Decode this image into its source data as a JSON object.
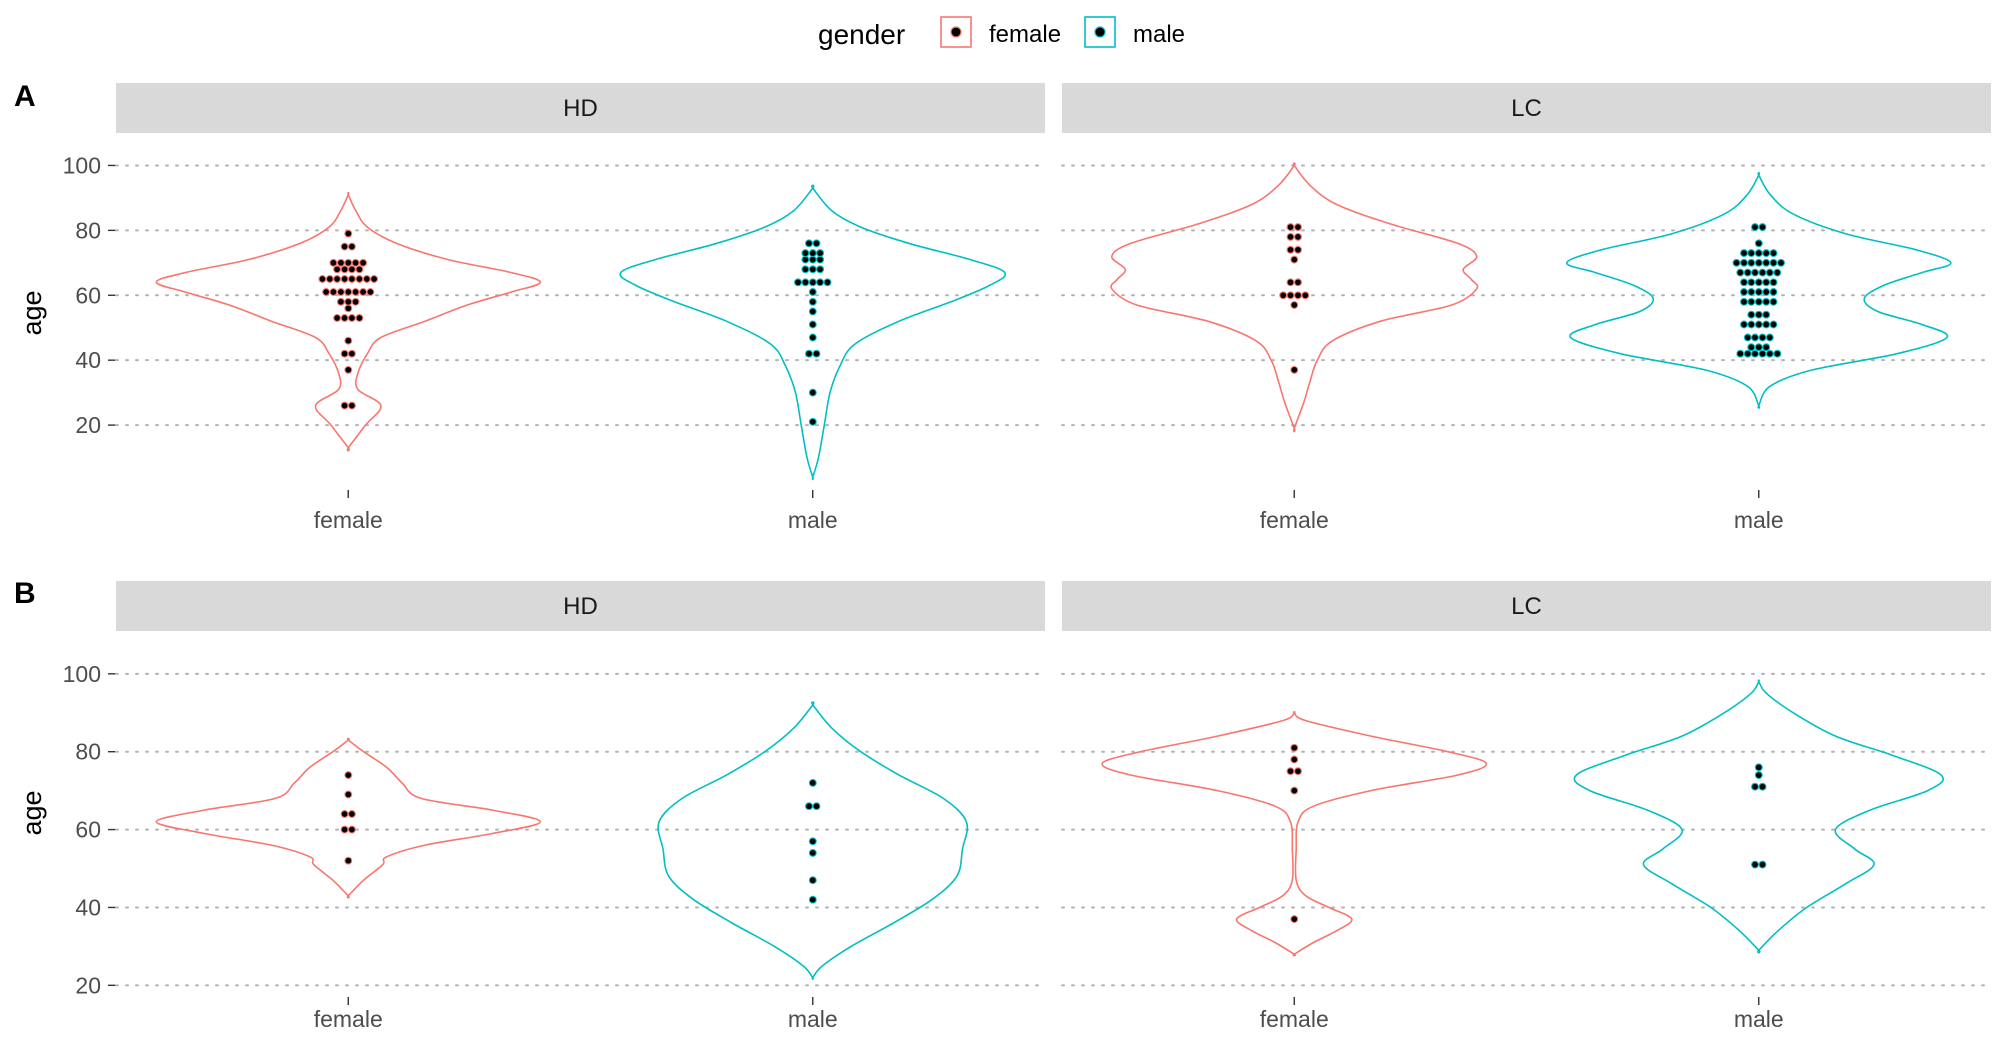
{
  "legend": {
    "title": "gender",
    "items": [
      {
        "label": "female",
        "color": "#F8766D"
      },
      {
        "label": "male",
        "color": "#00BFC4"
      }
    ]
  },
  "chart_data": [
    {
      "type": "violin",
      "tag": "A",
      "ylabel": "age",
      "ylim": [
        0,
        110
      ],
      "yticks": [
        20,
        40,
        60,
        80,
        100
      ],
      "categories": [
        "female",
        "male"
      ],
      "grid": "horizontal-dotted",
      "facets": [
        {
          "label": "HD",
          "groups": [
            {
              "name": "female",
              "color": "#F8766D",
              "range": [
                13,
                91
              ],
              "profile": [
                [
                  13,
                  0.0
                ],
                [
                  20,
                  0.09
                ],
                [
                  26,
                  0.17
                ],
                [
                  31,
                  0.05
                ],
                [
                  36,
                  0.05
                ],
                [
                  42,
                  0.1
                ],
                [
                  47,
                  0.17
                ],
                [
                  52,
                  0.4
                ],
                [
                  57,
                  0.62
                ],
                [
                  61,
                  0.85
                ],
                [
                  64,
                  1.0
                ],
                [
                  67,
                  0.85
                ],
                [
                  71,
                  0.52
                ],
                [
                  76,
                  0.25
                ],
                [
                  81,
                  0.1
                ],
                [
                  86,
                  0.04
                ],
                [
                  91,
                  0.0
                ]
              ],
              "points": [
                26,
                26,
                37,
                42,
                42,
                46,
                53,
                53,
                53,
                53,
                56,
                58,
                58,
                58,
                61,
                61,
                61,
                61,
                61,
                61,
                61,
                65,
                65,
                65,
                65,
                65,
                65,
                65,
                65,
                68,
                68,
                68,
                68,
                70,
                70,
                70,
                70,
                70,
                75,
                75,
                79
              ]
            },
            {
              "name": "male",
              "color": "#00BFC4",
              "range": [
                4,
                93
              ],
              "profile": [
                [
                  4,
                  0.0
                ],
                [
                  10,
                  0.03
                ],
                [
                  20,
                  0.06
                ],
                [
                  30,
                  0.09
                ],
                [
                  38,
                  0.14
                ],
                [
                  45,
                  0.22
                ],
                [
                  52,
                  0.45
                ],
                [
                  58,
                  0.72
                ],
                [
                  63,
                  0.92
                ],
                [
                  67,
                  1.0
                ],
                [
                  71,
                  0.82
                ],
                [
                  76,
                  0.5
                ],
                [
                  81,
                  0.25
                ],
                [
                  86,
                  0.1
                ],
                [
                  93,
                  0.0
                ]
              ],
              "points": [
                21,
                30,
                42,
                42,
                47,
                51,
                55,
                58,
                61,
                64,
                64,
                64,
                64,
                64,
                68,
                68,
                68,
                71,
                71,
                71,
                73,
                73,
                73,
                76,
                76
              ]
            }
          ]
        },
        {
          "label": "LC",
          "groups": [
            {
              "name": "female",
              "color": "#F8766D",
              "range": [
                19,
                100
              ],
              "profile": [
                [
                  19,
                  0.0
                ],
                [
                  27,
                  0.05
                ],
                [
                  33,
                  0.08
                ],
                [
                  40,
                  0.12
                ],
                [
                  46,
                  0.2
                ],
                [
                  52,
                  0.45
                ],
                [
                  57,
                  0.82
                ],
                [
                  62,
                  0.95
                ],
                [
                  65,
                  0.92
                ],
                [
                  68,
                  0.88
                ],
                [
                  72,
                  0.95
                ],
                [
                  76,
                  0.85
                ],
                [
                  82,
                  0.5
                ],
                [
                  88,
                  0.22
                ],
                [
                  94,
                  0.08
                ],
                [
                  100,
                  0.0
                ]
              ],
              "points": [
                37,
                57,
                60,
                60,
                60,
                60,
                64,
                64,
                71,
                74,
                74,
                78,
                78,
                81,
                81
              ]
            },
            {
              "name": "male",
              "color": "#00BFC4",
              "range": [
                26,
                97
              ],
              "profile": [
                [
                  26,
                  0.0
                ],
                [
                  32,
                  0.06
                ],
                [
                  37,
                  0.28
                ],
                [
                  42,
                  0.72
                ],
                [
                  47,
                  0.98
                ],
                [
                  51,
                  0.85
                ],
                [
                  55,
                  0.62
                ],
                [
                  59,
                  0.55
                ],
                [
                  63,
                  0.65
                ],
                [
                  67,
                  0.85
                ],
                [
                  70,
                  1.0
                ],
                [
                  74,
                  0.82
                ],
                [
                  79,
                  0.45
                ],
                [
                  85,
                  0.18
                ],
                [
                  91,
                  0.06
                ],
                [
                  97,
                  0.0
                ]
              ],
              "points": [
                42,
                42,
                42,
                42,
                42,
                42,
                44,
                44,
                44,
                47,
                47,
                47,
                47,
                51,
                51,
                51,
                51,
                51,
                54,
                54,
                54,
                58,
                58,
                58,
                58,
                58,
                61,
                61,
                61,
                61,
                61,
                64,
                64,
                64,
                64,
                64,
                67,
                67,
                67,
                67,
                67,
                67,
                70,
                70,
                70,
                70,
                70,
                70,
                70,
                73,
                73,
                73,
                73,
                73,
                76,
                81,
                81
              ]
            }
          ]
        }
      ]
    },
    {
      "type": "violin",
      "tag": "B",
      "ylabel": "age",
      "ylim": [
        17,
        111
      ],
      "yticks": [
        20,
        40,
        60,
        80,
        100
      ],
      "categories": [
        "female",
        "male"
      ],
      "grid": "horizontal-dotted",
      "facets": [
        {
          "label": "HD",
          "groups": [
            {
              "name": "female",
              "color": "#F8766D",
              "range": [
                43,
                83
              ],
              "profile": [
                [
                  43,
                  0.0
                ],
                [
                  47,
                  0.08
                ],
                [
                  51,
                  0.18
                ],
                [
                  53,
                  0.2
                ],
                [
                  56,
                  0.4
                ],
                [
                  59,
                  0.75
                ],
                [
                  62,
                  1.0
                ],
                [
                  65,
                  0.75
                ],
                [
                  68,
                  0.38
                ],
                [
                  72,
                  0.28
                ],
                [
                  76,
                  0.2
                ],
                [
                  80,
                  0.08
                ],
                [
                  83,
                  0.0
                ]
              ],
              "points": [
                52,
                60,
                60,
                64,
                64,
                69,
                74
              ]
            },
            {
              "name": "male",
              "color": "#00BFC4",
              "range": [
                22,
                92
              ],
              "profile": [
                [
                  22,
                  0.0
                ],
                [
                  25,
                  0.05
                ],
                [
                  30,
                  0.2
                ],
                [
                  36,
                  0.42
                ],
                [
                  42,
                  0.62
                ],
                [
                  48,
                  0.75
                ],
                [
                  55,
                  0.78
                ],
                [
                  62,
                  0.8
                ],
                [
                  68,
                  0.68
                ],
                [
                  74,
                  0.45
                ],
                [
                  80,
                  0.25
                ],
                [
                  86,
                  0.1
                ],
                [
                  92,
                  0.0
                ]
              ],
              "points": [
                42,
                47,
                54,
                57,
                66,
                66,
                72
              ]
            }
          ]
        },
        {
          "label": "LC",
          "groups": [
            {
              "name": "female",
              "color": "#F8766D",
              "range": [
                28,
                90
              ],
              "profile": [
                [
                  28,
                  0.0
                ],
                [
                  31,
                  0.1
                ],
                [
                  34,
                  0.22
                ],
                [
                  37,
                  0.3
                ],
                [
                  40,
                  0.18
                ],
                [
                  43,
                  0.06
                ],
                [
                  47,
                  0.01
                ],
                [
                  55,
                  0.01
                ],
                [
                  62,
                  0.02
                ],
                [
                  66,
                  0.1
                ],
                [
                  70,
                  0.4
                ],
                [
                  74,
                  0.85
                ],
                [
                  77,
                  1.0
                ],
                [
                  80,
                  0.8
                ],
                [
                  84,
                  0.4
                ],
                [
                  88,
                  0.06
                ],
                [
                  90,
                  0.0
                ]
              ],
              "points": [
                37,
                70,
                75,
                75,
                78,
                81
              ]
            },
            {
              "name": "male",
              "color": "#00BFC4",
              "range": [
                29,
                98
              ],
              "profile": [
                [
                  29,
                  0.0
                ],
                [
                  34,
                  0.1
                ],
                [
                  40,
                  0.25
                ],
                [
                  46,
                  0.45
                ],
                [
                  51,
                  0.6
                ],
                [
                  55,
                  0.5
                ],
                [
                  60,
                  0.4
                ],
                [
                  65,
                  0.58
                ],
                [
                  70,
                  0.88
                ],
                [
                  74,
                  0.95
                ],
                [
                  79,
                  0.7
                ],
                [
                  84,
                  0.4
                ],
                [
                  90,
                  0.18
                ],
                [
                  95,
                  0.04
                ],
                [
                  98,
                  0.0
                ]
              ],
              "points": [
                51,
                51,
                71,
                71,
                74,
                76
              ]
            }
          ]
        }
      ]
    }
  ]
}
